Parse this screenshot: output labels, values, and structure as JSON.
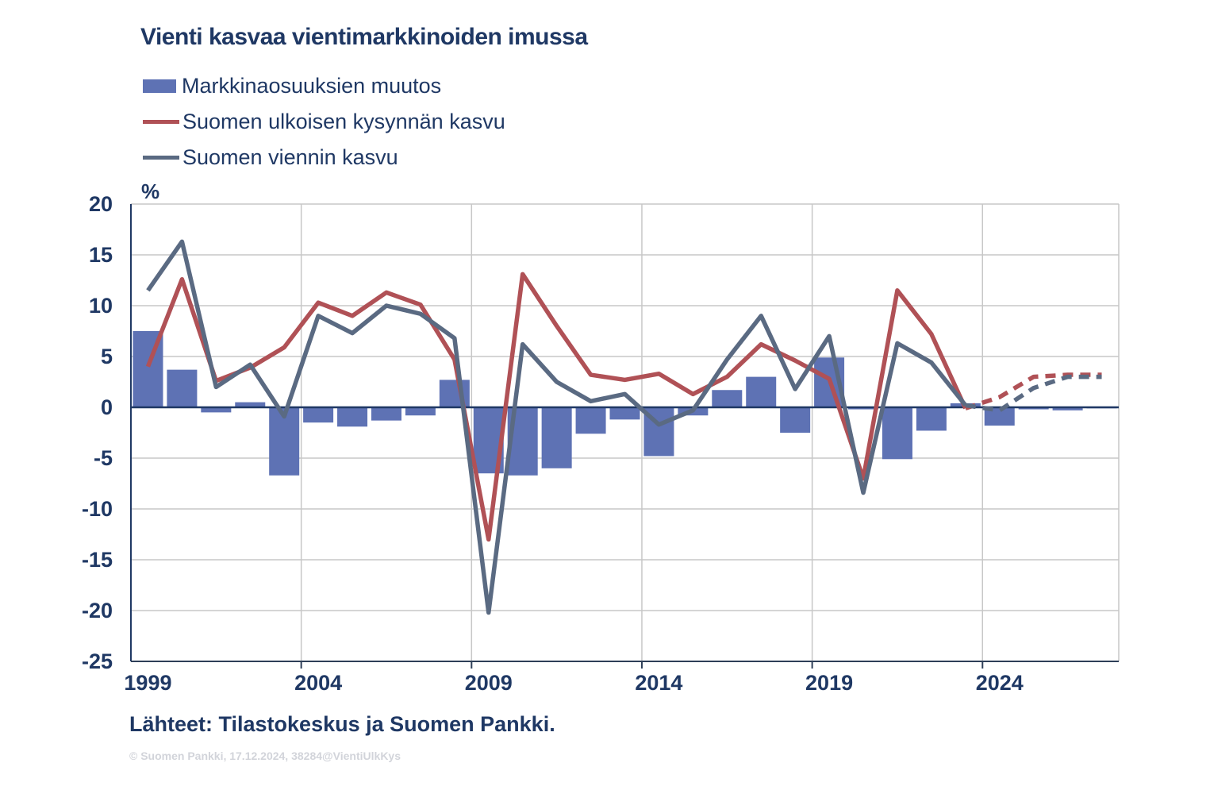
{
  "title": "Vienti kasvaa vientimarkkinoiden imussa",
  "legend": [
    {
      "label": "Markkinaosuuksien muutos",
      "type": "bar",
      "color": "#5e72b4"
    },
    {
      "label": "Suomen ulkoisen kysynnän kasvu",
      "type": "line",
      "color": "#b05156"
    },
    {
      "label": "Suomen viennin kasvu",
      "type": "line",
      "color": "#5a6a82"
    }
  ],
  "axis": {
    "unit_label": "%",
    "y_ticks": [
      20,
      15,
      10,
      5,
      0,
      -5,
      -10,
      -15,
      -20,
      -25
    ],
    "x_ticks": [
      1999,
      2004,
      2009,
      2014,
      2019,
      2024
    ],
    "ylim": [
      -25,
      20
    ],
    "xlim": [
      1998.5,
      2027.5
    ],
    "grid": true
  },
  "footer": {
    "sources": "Lähteet: Tilastokeskus ja Suomen Pankki.",
    "copyright": "© Suomen Pankki, 17.12.2024, 38284@VientiUlkKys"
  },
  "chart_data": {
    "type": "bar+line",
    "title": "Vienti kasvaa vientimarkkinoiden imussa",
    "ylabel": "%",
    "ylim": [
      -25,
      20
    ],
    "x": [
      1999,
      2000,
      2001,
      2002,
      2003,
      2004,
      2005,
      2006,
      2007,
      2008,
      2009,
      2010,
      2011,
      2012,
      2013,
      2014,
      2015,
      2016,
      2017,
      2018,
      2019,
      2020,
      2021,
      2022,
      2023,
      2024,
      2025,
      2026,
      2027
    ],
    "forecast_dashed_from": 2023,
    "series": [
      {
        "name": "Markkinaosuuksien muutos",
        "type": "bar",
        "color": "#5e72b4",
        "values": [
          7.5,
          3.7,
          -0.5,
          0.5,
          -6.7,
          -1.5,
          -1.9,
          -1.3,
          -0.8,
          2.7,
          -6.5,
          -6.7,
          -6.0,
          -2.6,
          -1.2,
          -4.8,
          -0.8,
          1.7,
          3.0,
          -2.5,
          4.9,
          -0.2,
          -5.1,
          -2.3,
          0.4,
          -1.8,
          -0.2,
          -0.3,
          -0.1
        ]
      },
      {
        "name": "Suomen ulkoisen kysynnän kasvu",
        "type": "line",
        "color": "#b05156",
        "values": [
          4.0,
          12.6,
          2.6,
          3.9,
          5.9,
          10.3,
          9.0,
          11.3,
          10.1,
          4.7,
          -13.0,
          13.1,
          8.0,
          3.2,
          2.7,
          3.3,
          1.3,
          3.0,
          6.2,
          4.6,
          2.8,
          -7.0,
          11.5,
          7.2,
          -0.1,
          1.0,
          3.0,
          3.2,
          3.2
        ]
      },
      {
        "name": "Suomen viennin kasvu",
        "type": "line",
        "color": "#5a6a82",
        "values": [
          11.5,
          16.3,
          2.0,
          4.2,
          -0.9,
          9.0,
          7.3,
          10.0,
          9.2,
          6.8,
          -20.2,
          6.2,
          2.5,
          0.6,
          1.3,
          -1.7,
          -0.3,
          4.7,
          9.0,
          1.8,
          7.0,
          -8.4,
          6.3,
          4.4,
          0.2,
          -0.3,
          1.9,
          3.0,
          3.0
        ]
      }
    ]
  },
  "colors": {
    "grid": "#c7c7c7",
    "axis_dark": "#1f3864",
    "bottom_axis": "#2e3f58"
  }
}
